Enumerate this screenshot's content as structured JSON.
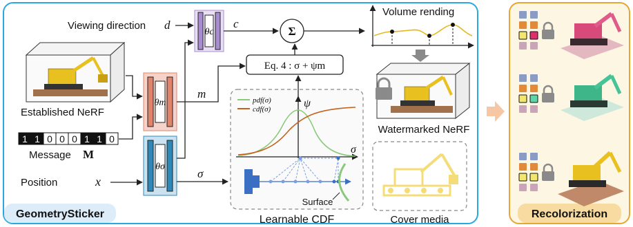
{
  "left_panel": {
    "badge": "GeometrySticker",
    "viewing_direction_label": "Viewing direction",
    "viewing_direction_symbol": "d",
    "established_nerf": "Established NeRF",
    "message_bits": [
      "1",
      "1",
      "0",
      "0",
      "0",
      "1",
      "1",
      "0"
    ],
    "message_label": "Message",
    "message_symbol": "M",
    "position_label": "Position",
    "position_symbol": "x",
    "theta_c": "θc",
    "theta_m": "θm",
    "theta_sigma": "θσ",
    "c_symbol": "c",
    "m_symbol": "m",
    "sigma_symbol": "σ",
    "sum_symbol": "Σ",
    "equation": "Eq. 4 : σ + ψm",
    "volume_rendering": "Volume rending",
    "watermarked_nerf": "Watermarked NeRF",
    "cover_media": "Cover media",
    "learnable_cdf": "Learnable CDF",
    "pdf_legend": "pdf(σ)",
    "cdf_legend": "cdf(σ)",
    "psi_symbol": "ψ",
    "sigma_axis": "σ",
    "surface_label": "Surface"
  },
  "right_panel": {
    "badge": "Recolorization"
  },
  "colors": {
    "left_border": "#29a8e0",
    "left_badge_bg": "#dcecf8",
    "right_border": "#e7a534",
    "right_bg": "#fdf6e3",
    "right_badge_bg": "#f7dba0",
    "theta_c": "#a88ed0",
    "theta_m": "#e0846b",
    "theta_sigma": "#2f88b8",
    "pdf_curve": "#8ac97a",
    "cdf_curve": "#c4601e",
    "volume_curve": "#e6b820",
    "cover_media": "#f3d96a"
  }
}
